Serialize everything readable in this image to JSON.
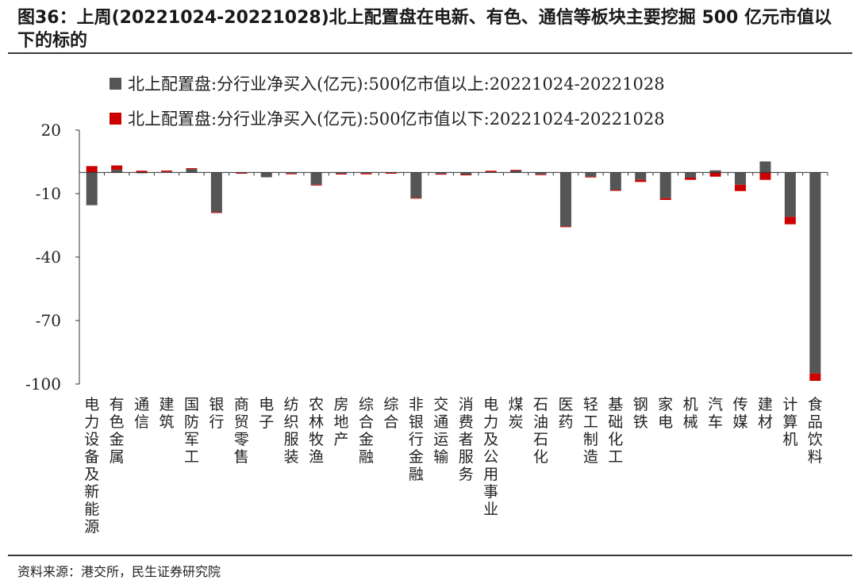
{
  "figure": {
    "title": "图36：上周(20221024-20221028)北上配置盘在电新、有色、通信等板块主要挖掘 500 亿元市值以下的标的",
    "source": "资料来源：港交所，民生证券研究院"
  },
  "chart_data": {
    "type": "bar",
    "stacked": true,
    "categories": [
      "电力设备及新能源",
      "有色金属",
      "通信",
      "建筑",
      "国防军工",
      "银行",
      "商贸零售",
      "电子",
      "纺织服装",
      "农林牧渔",
      "房地产",
      "综合金融",
      "综合",
      "非银行金融",
      "交通运输",
      "消费者服务",
      "电力及公用事业",
      "煤炭",
      "石油石化",
      "医药",
      "轻工制造",
      "基础化工",
      "钢铁",
      "家电",
      "机械",
      "汽车",
      "传媒",
      "建材",
      "计算机",
      "食品饮料"
    ],
    "series": [
      {
        "name": "北上配置盘:分行业净买入(亿元):500亿市值以上:20221024-20221028",
        "color": "#555555",
        "values": [
          -15.5,
          1.3,
          -0.2,
          0.4,
          1.7,
          -18.8,
          -0.2,
          -2.3,
          -0.5,
          -5.8,
          -0.6,
          -0.4,
          -0.2,
          -12.0,
          -0.7,
          -1.0,
          0.3,
          1.0,
          -0.9,
          -25.5,
          -2.0,
          -8.3,
          -3.5,
          -12.2,
          -2.5,
          1.0,
          -5.8,
          5.2,
          -21.0,
          -95.0
        ]
      },
      {
        "name": "北上配置盘:分行业净买入(亿元):500亿市值以下:20221024-20221028",
        "color": "#cc0000",
        "values": [
          3.0,
          2.0,
          0.8,
          0.5,
          0.3,
          -0.3,
          -0.4,
          0.0,
          -0.2,
          -0.2,
          -0.3,
          -0.5,
          -0.4,
          -0.3,
          -0.2,
          -0.2,
          0.5,
          0.2,
          -0.2,
          -0.3,
          -0.3,
          -0.4,
          -1.0,
          -0.8,
          -1.0,
          -2.0,
          -3.0,
          -3.5,
          -3.5,
          -3.5
        ]
      }
    ],
    "ylim": [
      -100,
      20
    ],
    "yticks": [
      20,
      -10,
      -40,
      -70,
      -100
    ],
    "ytick_labels": [
      "20",
      "-10",
      "-40",
      "-70",
      "-100"
    ],
    "legend_position": "top",
    "grid": false
  }
}
